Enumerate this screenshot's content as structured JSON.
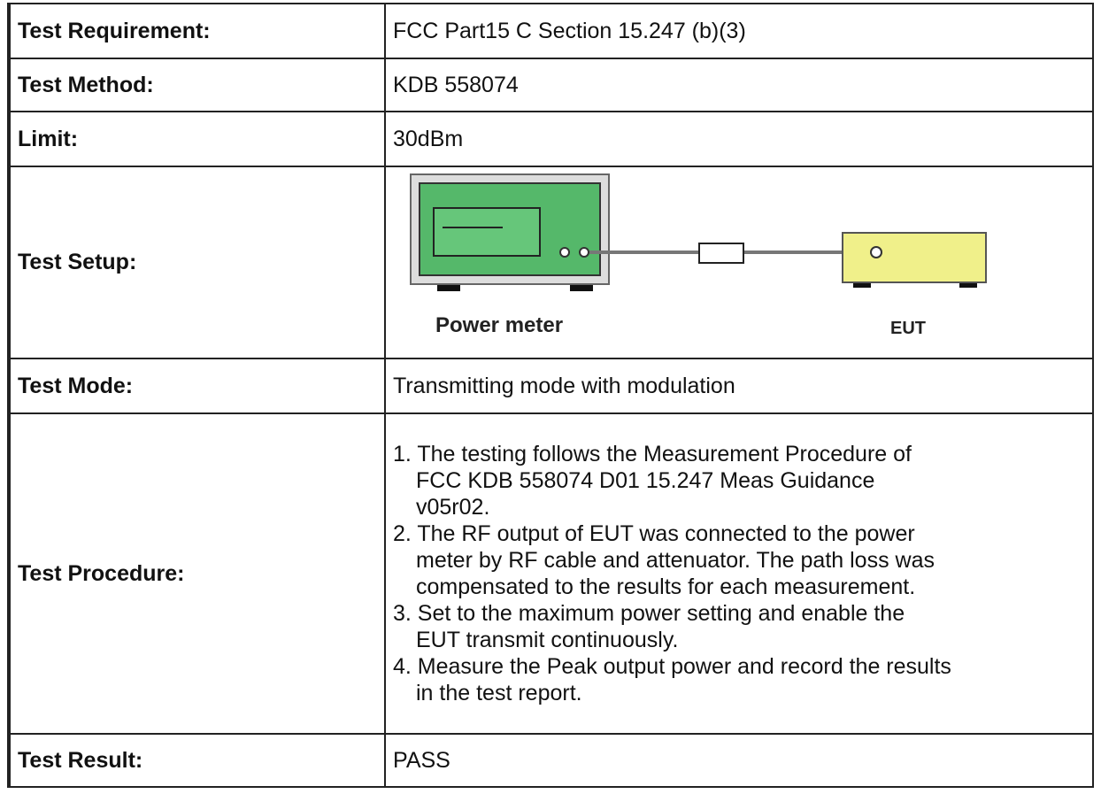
{
  "table": {
    "rows": [
      {
        "label": "Test Requirement:",
        "value": "FCC Part15 C Section 15.247 (b)(3)"
      },
      {
        "label": "Test Method:",
        "value": "KDB 558074"
      },
      {
        "label": "Limit:",
        "value": "30dBm"
      },
      {
        "label": "Test Setup:",
        "diagram": {
          "meter_label": "Power meter",
          "eut_label": "EUT"
        }
      },
      {
        "label": "Test Mode:",
        "value": "Transmitting mode with modulation"
      },
      {
        "label": "Test Procedure:",
        "items": [
          [
            "1. The testing follows the Measurement Procedure of",
            "FCC KDB 558074 D01 15.247 Meas Guidance",
            "v05r02."
          ],
          [
            "2. The RF output of EUT was connected to the power",
            "meter by RF cable and attenuator. The path loss was",
            "compensated to the results for each measurement."
          ],
          [
            "3. Set to the maximum power setting and enable the",
            "EUT transmit continuously."
          ],
          [
            "4. Measure the Peak output power and record the results",
            "in the test report."
          ]
        ]
      },
      {
        "label": "Test Result:",
        "value": "PASS"
      }
    ]
  }
}
